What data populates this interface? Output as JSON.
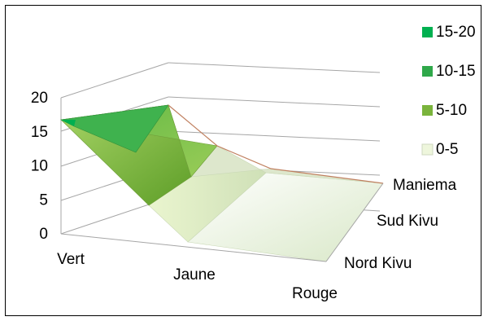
{
  "chart_data": {
    "type": "surface-3d",
    "title": "",
    "x_categories": [
      "Vert",
      "Jaune",
      "Rouge"
    ],
    "depth_categories": [
      "Nord Kivu",
      "Sud Kivu",
      "Maniema"
    ],
    "z_ticks": [
      "0",
      "5",
      "10",
      "15",
      "20"
    ],
    "zlim": [
      0,
      20
    ],
    "values": {
      "Nord Kivu": [
        15,
        0,
        0
      ],
      "Sud Kivu": [
        15,
        8,
        1
      ],
      "Maniema": [
        16,
        8,
        1
      ]
    },
    "legend": [
      {
        "label": "15-20",
        "color": "#00b050"
      },
      {
        "label": "10-15",
        "color": "#2fa84a"
      },
      {
        "label": "5-10",
        "color": "#7ab43c"
      },
      {
        "label": "0-5",
        "color": "#eef6dc"
      }
    ],
    "legend_position": "right",
    "grid": true
  }
}
